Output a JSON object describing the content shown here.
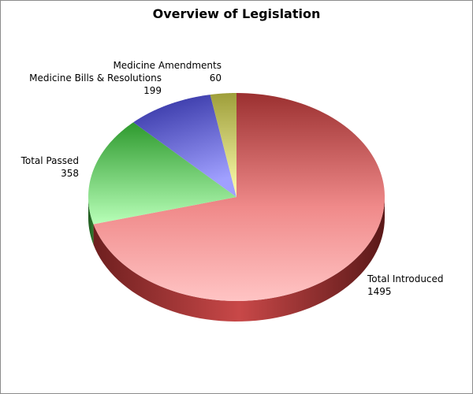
{
  "chart_data": {
    "type": "pie",
    "title": "Overview of Legislation",
    "slices": [
      {
        "label": "Total Introduced",
        "value": 1495,
        "color": "#d9534f"
      },
      {
        "label": "Total Passed",
        "value": 358,
        "color": "#5cc45c"
      },
      {
        "label": "Medicine Bills & Resolutions",
        "value": 199,
        "color": "#5a5ad6"
      },
      {
        "label": "Medicine Amendments",
        "value": 60,
        "color": "#d6d670"
      }
    ],
    "style": "3d-perspective",
    "legend": "none",
    "data_labels": "outside"
  }
}
